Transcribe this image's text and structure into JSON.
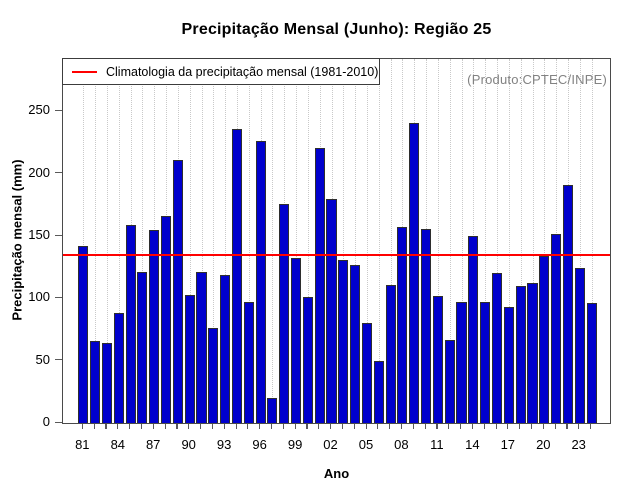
{
  "header": {
    "title": "Precipitação Mensal (Junho): Região 25"
  },
  "annotations": {
    "source": "(Produto:CPTEC/INPE)"
  },
  "legend": {
    "label": "Climatologia da precipitação mensal (1981-2010)"
  },
  "axes": {
    "x_label": "Ano",
    "y_label": "Precipitação mensal (mm)",
    "x_tick_labels": [
      "81",
      "84",
      "87",
      "90",
      "93",
      "96",
      "99",
      "02",
      "05",
      "08",
      "11",
      "14",
      "17",
      "20",
      "23"
    ],
    "y_ticks": [
      0,
      50,
      100,
      150,
      200,
      250
    ]
  },
  "colors": {
    "bar_fill": "#0000CD",
    "bar_border": "#2e2e2e",
    "climatology_line": "#FF0000",
    "grid": "#C9C9C9",
    "source_text": "#828282"
  },
  "chart_data": {
    "type": "bar",
    "title": "Precipitação Mensal (Junho): Região 25",
    "xlabel": "Ano",
    "ylabel": "Precipitação mensal (mm)",
    "categories": [
      1981,
      1982,
      1983,
      1984,
      1985,
      1986,
      1987,
      1988,
      1989,
      1990,
      1991,
      1992,
      1993,
      1994,
      1995,
      1996,
      1997,
      1998,
      1999,
      2000,
      2001,
      2002,
      2003,
      2004,
      2005,
      2006,
      2007,
      2008,
      2009,
      2010,
      2011,
      2012,
      2013,
      2014,
      2015,
      2016,
      2017,
      2018,
      2019,
      2020,
      2021,
      2022,
      2023,
      2024
    ],
    "values": [
      142,
      66,
      64,
      88,
      159,
      121,
      155,
      166,
      211,
      103,
      121,
      76,
      119,
      236,
      97,
      226,
      20,
      176,
      132,
      101,
      221,
      180,
      131,
      127,
      80,
      50,
      111,
      157,
      241,
      156,
      102,
      67,
      97,
      150,
      97,
      120,
      93,
      110,
      112,
      134,
      152,
      191,
      124,
      96
    ],
    "climatology_1981_2010": 135,
    "ylim": [
      0,
      292
    ],
    "x_tick_step": 3,
    "grid": "vertical-dotted",
    "legend_position": "top-left",
    "legend_entries": [
      "Climatologia da precipitação mensal (1981-2010)"
    ],
    "annotation": "(Produto:CPTEC/INPE)"
  }
}
